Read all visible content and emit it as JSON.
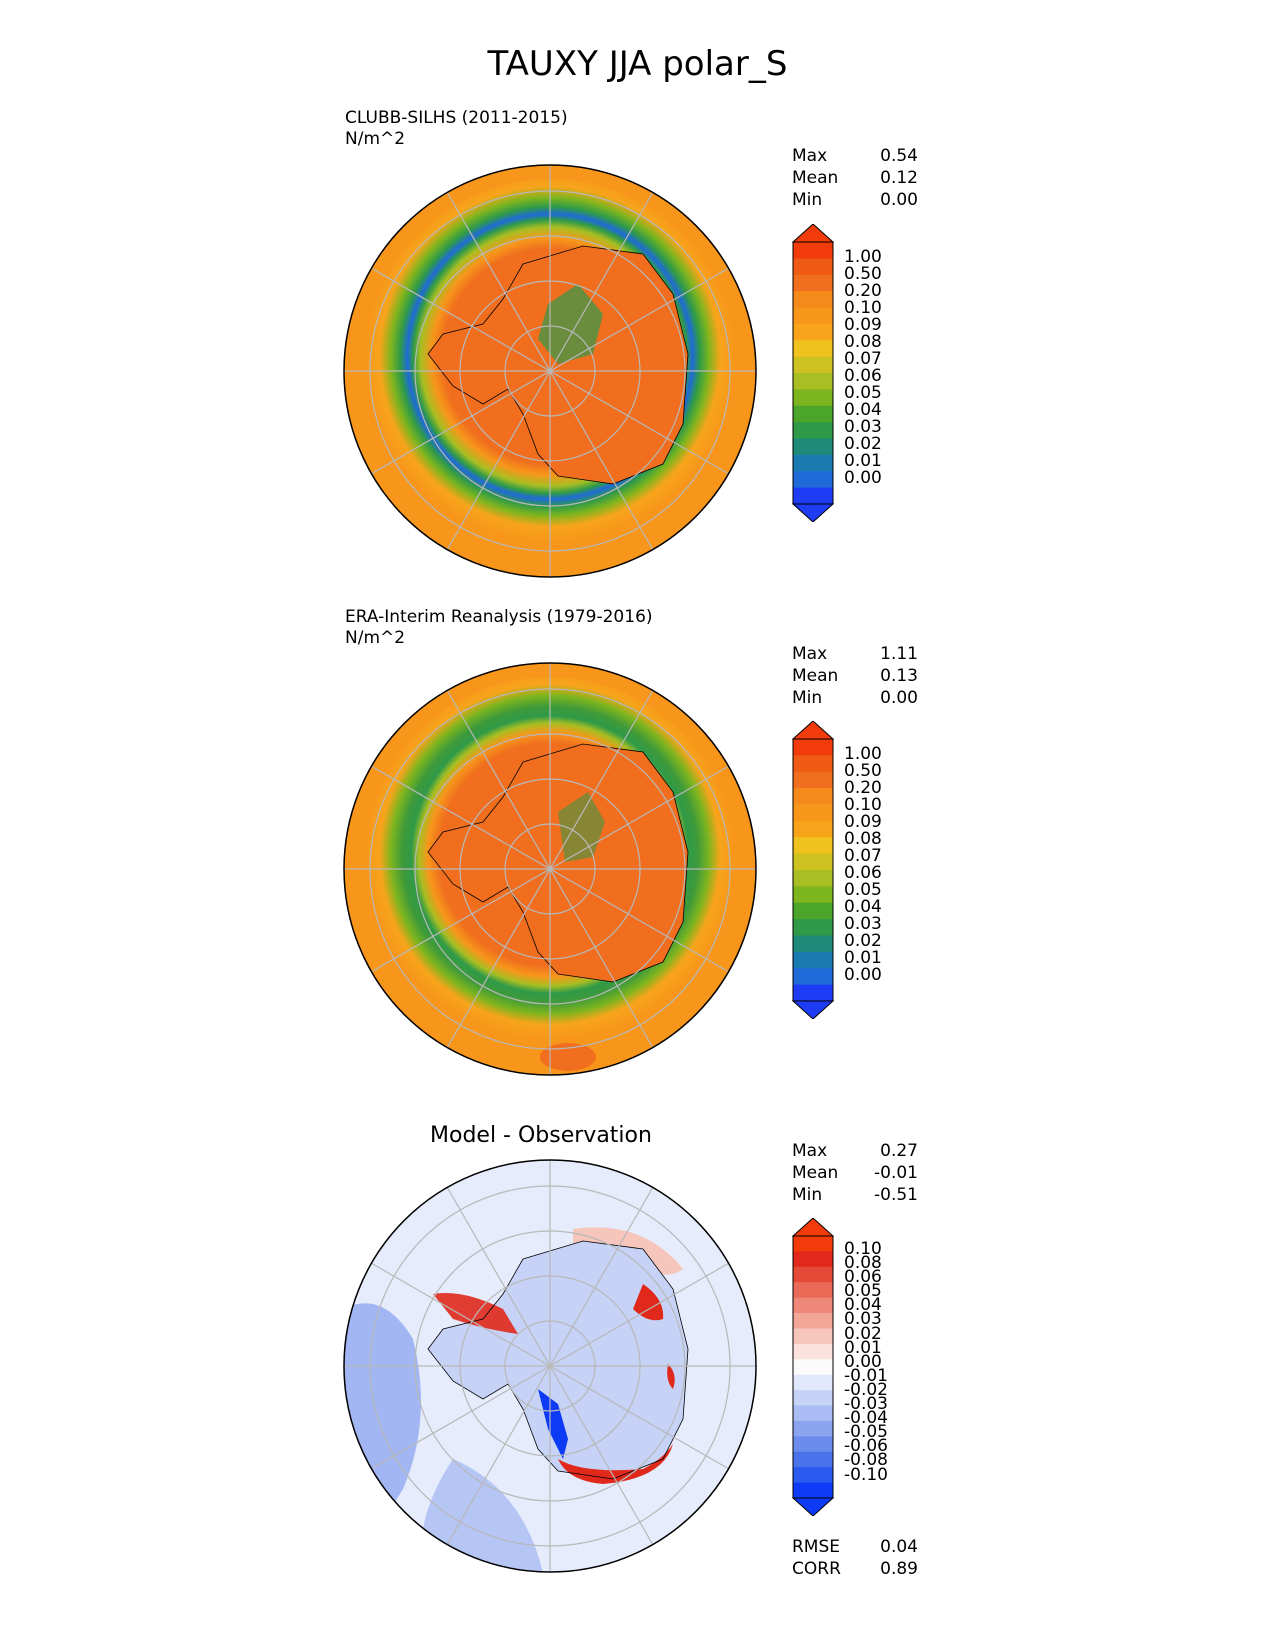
{
  "figure": {
    "title": "TAUXY JJA polar_S"
  },
  "panels": [
    {
      "subtitle": "CLUBB-SILHS (2011-2015)",
      "units": "N/m^2",
      "stats": [
        {
          "label": "Max",
          "value": "0.54"
        },
        {
          "label": "Mean",
          "value": "0.12"
        },
        {
          "label": "Min",
          "value": "0.00"
        }
      ],
      "colorbar_ticks": [
        "1.00",
        "0.50",
        "0.20",
        "0.10",
        "0.09",
        "0.08",
        "0.07",
        "0.06",
        "0.05",
        "0.04",
        "0.03",
        "0.02",
        "0.01",
        "0.00"
      ]
    },
    {
      "subtitle": "ERA-Interim Reanalysis (1979-2016)",
      "units": "N/m^2",
      "stats": [
        {
          "label": "Max",
          "value": "1.11"
        },
        {
          "label": "Mean",
          "value": "0.13"
        },
        {
          "label": "Min",
          "value": "0.00"
        }
      ],
      "colorbar_ticks": [
        "1.00",
        "0.50",
        "0.20",
        "0.10",
        "0.09",
        "0.08",
        "0.07",
        "0.06",
        "0.05",
        "0.04",
        "0.03",
        "0.02",
        "0.01",
        "0.00"
      ]
    },
    {
      "title": "Model - Observation",
      "stats": [
        {
          "label": "Max",
          "value": "0.27"
        },
        {
          "label": "Mean",
          "value": "-0.01"
        },
        {
          "label": "Min",
          "value": "-0.51"
        }
      ],
      "colorbar_ticks": [
        "0.10",
        "0.08",
        "0.06",
        "0.05",
        "0.04",
        "0.03",
        "0.02",
        "0.01",
        "0.00",
        "-0.01",
        "-0.02",
        "-0.03",
        "-0.04",
        "-0.05",
        "-0.06",
        "-0.08",
        "-0.10"
      ],
      "metrics": [
        {
          "label": "RMSE",
          "value": "0.04"
        },
        {
          "label": "CORR",
          "value": "0.89"
        }
      ]
    }
  ],
  "colors": {
    "field_background": "#f7961b",
    "field_ring_green": "#3f9a3a",
    "field_ring_blue": "#1f6fc0",
    "continent_fill": "#f06e1e",
    "diff_background": "#e6ecfb",
    "diff_positive": "#e8261c",
    "diff_negative": "#2a57e0",
    "graticule": "#b8b8b8",
    "coastline": "#000000",
    "sequential_colormap": [
      "#1f3cf5",
      "#1f6ad8",
      "#1a7bb0",
      "#1f8a7a",
      "#2f9a48",
      "#4aa52a",
      "#7db51e",
      "#a8be22",
      "#cdc222",
      "#f0c21e",
      "#f7a41b",
      "#f7961b",
      "#f48a1a",
      "#f06e1e",
      "#ef5a14",
      "#f23b0a"
    ],
    "diverging_colormap": [
      "#0d3bf5",
      "#2a5bee",
      "#4a72ea",
      "#6b8cec",
      "#8aa4ef",
      "#a9bcf3",
      "#c6d2f6",
      "#e2e8fb",
      "#fbfbfb",
      "#fbe2dd",
      "#f6c5bc",
      "#f2a698",
      "#ee8878",
      "#ea6a58",
      "#e54a39",
      "#e0291b",
      "#f23b0a"
    ]
  }
}
